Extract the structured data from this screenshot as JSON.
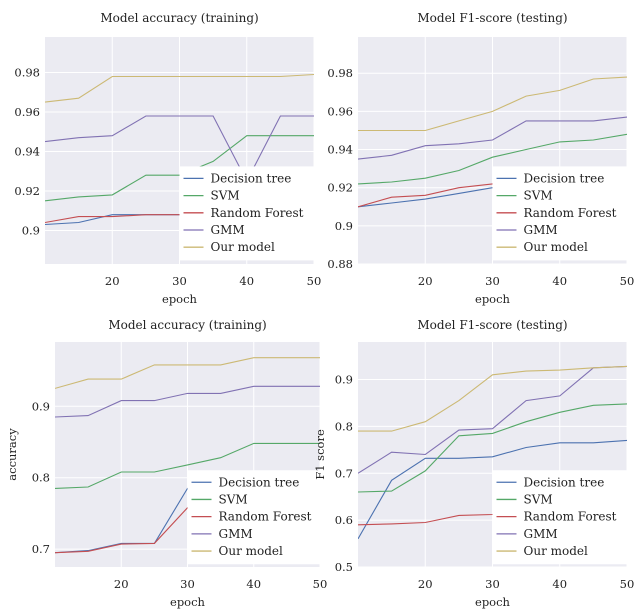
{
  "colors": {
    "background": "#ebebf2",
    "grid": "#ffffff",
    "series": {
      "Decision tree": "#4c72b0",
      "SVM": "#55a868",
      "Random Forest": "#c44e52",
      "GMM": "#8172b3",
      "Our model": "#ccb974"
    }
  },
  "chart_data": [
    {
      "type": "line",
      "title": "Model accuracy (training)",
      "xlabel": "epoch",
      "ylabel": "",
      "xlim": [
        10,
        50
      ],
      "ylim": [
        0.883,
        0.998
      ],
      "xticks": [
        20,
        30,
        40,
        50
      ],
      "yticks": [
        0.9,
        0.92,
        0.94,
        0.96,
        0.98
      ],
      "ytick_labels": [
        "0.9",
        "0.92",
        "0.94",
        "0.96",
        "0.98"
      ],
      "grid": true,
      "legend": [
        "Decision tree",
        "SVM",
        "Random Forest",
        "GMM",
        "Our model"
      ],
      "legend_position": "lower-right",
      "x": [
        10,
        15,
        20,
        25,
        30,
        35,
        40,
        45,
        50
      ],
      "series": [
        {
          "name": "Decision tree",
          "values": [
            0.903,
            0.904,
            0.908,
            0.908,
            0.908,
            0.919,
            0.919,
            0.919,
            0.919
          ]
        },
        {
          "name": "SVM",
          "values": [
            0.915,
            0.917,
            0.918,
            0.928,
            0.928,
            0.935,
            0.948,
            0.948,
            0.948
          ]
        },
        {
          "name": "Random Forest",
          "values": [
            0.904,
            0.907,
            0.907,
            0.908,
            0.908,
            0.908,
            0.918,
            0.918,
            0.918
          ]
        },
        {
          "name": "GMM",
          "values": [
            0.945,
            0.947,
            0.948,
            0.958,
            0.958,
            0.958,
            0.925,
            0.958,
            0.958
          ]
        },
        {
          "name": "Our model",
          "values": [
            0.965,
            0.967,
            0.978,
            0.978,
            0.978,
            0.978,
            0.978,
            0.978,
            0.979
          ]
        }
      ]
    },
    {
      "type": "line",
      "title": "Model F1-score (testing)",
      "xlabel": "epoch",
      "ylabel": "",
      "xlim": [
        10,
        50
      ],
      "ylim": [
        0.88,
        0.999
      ],
      "xticks": [
        20,
        30,
        40,
        50
      ],
      "yticks": [
        0.88,
        0.9,
        0.92,
        0.94,
        0.96,
        0.98
      ],
      "ytick_labels": [
        "0.88",
        "0.9",
        "0.92",
        "0.94",
        "0.96",
        "0.98"
      ],
      "grid": true,
      "legend": [
        "Decision tree",
        "SVM",
        "Random Forest",
        "GMM",
        "Our model"
      ],
      "legend_position": "lower-right",
      "x": [
        10,
        15,
        20,
        25,
        30,
        35,
        40,
        45,
        50
      ],
      "series": [
        {
          "name": "Decision tree",
          "values": [
            0.91,
            0.912,
            0.914,
            0.917,
            0.92,
            0.924,
            0.925,
            0.926,
            0.926
          ]
        },
        {
          "name": "SVM",
          "values": [
            0.922,
            0.923,
            0.925,
            0.929,
            0.936,
            0.94,
            0.944,
            0.945,
            0.948
          ]
        },
        {
          "name": "Random Forest",
          "values": [
            0.91,
            0.915,
            0.916,
            0.92,
            0.922,
            0.924,
            0.925,
            0.926,
            0.926
          ]
        },
        {
          "name": "GMM",
          "values": [
            0.935,
            0.937,
            0.942,
            0.943,
            0.945,
            0.955,
            0.955,
            0.955,
            0.957
          ]
        },
        {
          "name": "Our model",
          "values": [
            0.95,
            0.95,
            0.95,
            0.955,
            0.96,
            0.968,
            0.971,
            0.977,
            0.978
          ]
        }
      ]
    },
    {
      "type": "line",
      "title": "Model accuracy (training)",
      "xlabel": "epoch",
      "ylabel": "accuracy",
      "xlim": [
        10,
        50
      ],
      "ylim": [
        0.675,
        0.99
      ],
      "xticks": [
        20,
        30,
        40,
        50
      ],
      "yticks": [
        0.7,
        0.8,
        0.9
      ],
      "ytick_labels": [
        "0.7",
        "0.8",
        "0.9"
      ],
      "grid": true,
      "legend": [
        "Decision tree",
        "SVM",
        "Random Forest",
        "GMM",
        "Our model"
      ],
      "legend_position": "lower-right",
      "x": [
        10,
        15,
        20,
        25,
        30,
        35,
        40,
        45,
        50
      ],
      "series": [
        {
          "name": "Decision tree",
          "values": [
            0.695,
            0.698,
            0.708,
            0.708,
            0.785,
            0.785,
            0.78,
            0.78,
            0.78
          ]
        },
        {
          "name": "SVM",
          "values": [
            0.785,
            0.787,
            0.808,
            0.808,
            0.818,
            0.828,
            0.848,
            0.848,
            0.848
          ]
        },
        {
          "name": "Random Forest",
          "values": [
            0.695,
            0.697,
            0.707,
            0.708,
            0.758,
            0.778,
            0.778,
            0.778,
            0.778
          ]
        },
        {
          "name": "GMM",
          "values": [
            0.885,
            0.887,
            0.908,
            0.908,
            0.918,
            0.918,
            0.928,
            0.928,
            0.928
          ]
        },
        {
          "name": "Our model",
          "values": [
            0.925,
            0.938,
            0.938,
            0.958,
            0.958,
            0.958,
            0.968,
            0.968,
            0.968
          ]
        }
      ]
    },
    {
      "type": "line",
      "title": "Model F1-score (testing)",
      "xlabel": "epoch",
      "ylabel": "F1 score",
      "xlim": [
        10,
        50
      ],
      "ylim": [
        0.5,
        0.98
      ],
      "xticks": [
        20,
        30,
        40,
        50
      ],
      "yticks": [
        0.5,
        0.6,
        0.7,
        0.8,
        0.9
      ],
      "ytick_labels": [
        "0.5",
        "0.6",
        "0.7",
        "0.8",
        "0.9"
      ],
      "grid": true,
      "legend": [
        "Decision tree",
        "SVM",
        "Random Forest",
        "GMM",
        "Our model"
      ],
      "legend_position": "lower-right",
      "x": [
        10,
        15,
        20,
        25,
        30,
        35,
        40,
        45,
        50
      ],
      "series": [
        {
          "name": "Decision tree",
          "values": [
            0.56,
            0.685,
            0.732,
            0.732,
            0.735,
            0.755,
            0.765,
            0.765,
            0.77
          ]
        },
        {
          "name": "SVM",
          "values": [
            0.66,
            0.662,
            0.705,
            0.78,
            0.785,
            0.81,
            0.83,
            0.845,
            0.848
          ]
        },
        {
          "name": "Random Forest",
          "values": [
            0.59,
            0.592,
            0.595,
            0.61,
            0.612,
            0.65,
            0.68,
            0.685,
            0.685
          ]
        },
        {
          "name": "GMM",
          "values": [
            0.7,
            0.745,
            0.74,
            0.792,
            0.795,
            0.855,
            0.865,
            0.925,
            0.928
          ]
        },
        {
          "name": "Our model",
          "values": [
            0.79,
            0.79,
            0.81,
            0.855,
            0.91,
            0.918,
            0.92,
            0.925,
            0.928
          ]
        }
      ]
    }
  ]
}
